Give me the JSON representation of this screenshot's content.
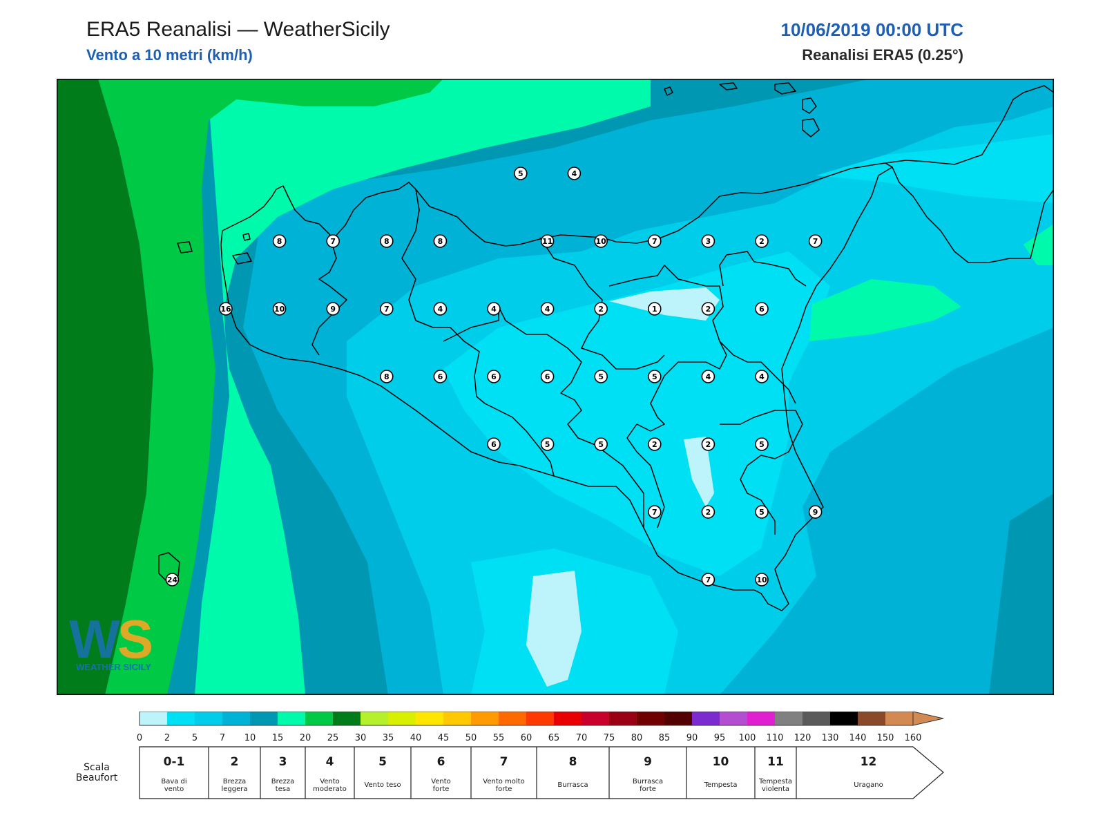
{
  "header": {
    "title": "ERA5 Reanalisi — WeatherSicily",
    "subtitle": "Vento a 10 metri (km/h)",
    "datetime": "10/06/2019 00:00 UTC",
    "source": "Reanalisi ERA5 (0.25°)"
  },
  "colors": {
    "wind_0_2": "#bdf3fb",
    "wind_2_5": "#00e0f5",
    "wind_5_7": "#00cde9",
    "wind_7_10": "#00b3d6",
    "wind_10_15": "#0097b3",
    "wind_15_20": "#00faab",
    "wind_20_25": "#00c946",
    "wind_25_30": "#007d1a",
    "coastline": "#000000",
    "accent": "#1e5fb4"
  },
  "logo": {
    "icon": "weathersicily-logo",
    "text": "WEATHER SICILY"
  },
  "stations": [
    {
      "lat": 38.25,
      "lon": 14.75,
      "value": "5"
    },
    {
      "lat": 38.25,
      "lon": 15.25,
      "value": "4"
    },
    {
      "lat": 38.0,
      "lon": 12.5,
      "value": "8"
    },
    {
      "lat": 38.0,
      "lon": 13.0,
      "value": "7"
    },
    {
      "lat": 38.0,
      "lon": 13.5,
      "value": "8"
    },
    {
      "lat": 38.0,
      "lon": 14.0,
      "value": "8"
    },
    {
      "lat": 38.0,
      "lon": 15.0,
      "value": "11"
    },
    {
      "lat": 38.0,
      "lon": 15.5,
      "value": "10"
    },
    {
      "lat": 38.0,
      "lon": 16.0,
      "value": "7"
    },
    {
      "lat": 38.0,
      "lon": 16.5,
      "value": "3"
    },
    {
      "lat": 38.0,
      "lon": 17.0,
      "value": "2"
    },
    {
      "lat": 38.0,
      "lon": 17.5,
      "value": "7"
    },
    {
      "lat": 37.75,
      "lon": 12.0,
      "value": "16"
    },
    {
      "lat": 37.75,
      "lon": 12.5,
      "value": "10"
    },
    {
      "lat": 37.75,
      "lon": 13.0,
      "value": "9"
    },
    {
      "lat": 37.75,
      "lon": 13.5,
      "value": "7"
    },
    {
      "lat": 37.75,
      "lon": 14.0,
      "value": "4"
    },
    {
      "lat": 37.75,
      "lon": 14.5,
      "value": "4"
    },
    {
      "lat": 37.75,
      "lon": 15.0,
      "value": "4"
    },
    {
      "lat": 37.75,
      "lon": 15.5,
      "value": "2"
    },
    {
      "lat": 37.75,
      "lon": 16.0,
      "value": "1"
    },
    {
      "lat": 37.75,
      "lon": 16.5,
      "value": "2"
    },
    {
      "lat": 37.75,
      "lon": 17.0,
      "value": "6"
    },
    {
      "lat": 37.5,
      "lon": 13.5,
      "value": "8"
    },
    {
      "lat": 37.5,
      "lon": 14.0,
      "value": "6"
    },
    {
      "lat": 37.5,
      "lon": 14.5,
      "value": "6"
    },
    {
      "lat": 37.5,
      "lon": 15.0,
      "value": "6"
    },
    {
      "lat": 37.5,
      "lon": 15.5,
      "value": "5"
    },
    {
      "lat": 37.5,
      "lon": 16.0,
      "value": "5"
    },
    {
      "lat": 37.5,
      "lon": 16.5,
      "value": "4"
    },
    {
      "lat": 37.5,
      "lon": 17.0,
      "value": "4"
    },
    {
      "lat": 37.25,
      "lon": 14.5,
      "value": "6"
    },
    {
      "lat": 37.25,
      "lon": 15.0,
      "value": "5"
    },
    {
      "lat": 37.25,
      "lon": 15.5,
      "value": "5"
    },
    {
      "lat": 37.25,
      "lon": 16.0,
      "value": "2"
    },
    {
      "lat": 37.25,
      "lon": 16.5,
      "value": "2"
    },
    {
      "lat": 37.25,
      "lon": 17.0,
      "value": "5"
    },
    {
      "lat": 37.0,
      "lon": 16.0,
      "value": "7"
    },
    {
      "lat": 37.0,
      "lon": 16.5,
      "value": "2"
    },
    {
      "lat": 37.0,
      "lon": 17.0,
      "value": "5"
    },
    {
      "lat": 37.0,
      "lon": 17.5,
      "value": "9"
    },
    {
      "lat": 36.75,
      "lon": 11.5,
      "value": "24"
    },
    {
      "lat": 36.75,
      "lon": 16.5,
      "value": "7"
    },
    {
      "lat": 36.75,
      "lon": 17.0,
      "value": "10"
    }
  ],
  "colorbar": {
    "ticks": [
      "0",
      "2",
      "5",
      "7",
      "10",
      "15",
      "20",
      "25",
      "30",
      "35",
      "40",
      "45",
      "50",
      "55",
      "60",
      "65",
      "70",
      "75",
      "80",
      "85",
      "90",
      "95",
      "100",
      "110",
      "120",
      "130",
      "140",
      "150",
      "160"
    ],
    "colors": [
      "#bdf3fb",
      "#00e0f5",
      "#00cde9",
      "#00b3d6",
      "#0097b3",
      "#00faab",
      "#00c946",
      "#007d1a",
      "#b4f02b",
      "#d8f000",
      "#ffe600",
      "#ffc800",
      "#ff9a00",
      "#ff6a00",
      "#ff3a00",
      "#e80000",
      "#c8002a",
      "#9a0014",
      "#700000",
      "#520000",
      "#7b2bd0",
      "#b44ed0",
      "#e020d0",
      "#808080",
      "#5a5a5a",
      "#000000",
      "#8a4a2a",
      "#d28a52",
      "#d28a52"
    ]
  },
  "beaufort": {
    "label_line1": "Scala",
    "label_line2": "Beaufort",
    "classes": [
      {
        "num": "0-1",
        "desc": [
          "Bava di",
          "vento"
        ]
      },
      {
        "num": "2",
        "desc": [
          "Brezza",
          "leggera"
        ]
      },
      {
        "num": "3",
        "desc": [
          "Brezza",
          "tesa"
        ]
      },
      {
        "num": "4",
        "desc": [
          "Vento",
          "moderato"
        ]
      },
      {
        "num": "5",
        "desc": [
          "Vento teso"
        ]
      },
      {
        "num": "6",
        "desc": [
          "Vento",
          "forte"
        ]
      },
      {
        "num": "7",
        "desc": [
          "Vento molto",
          "forte"
        ]
      },
      {
        "num": "8",
        "desc": [
          "Burrasca"
        ]
      },
      {
        "num": "9",
        "desc": [
          "Burrasca",
          "forte"
        ]
      },
      {
        "num": "10",
        "desc": [
          "Tempesta"
        ]
      },
      {
        "num": "11",
        "desc": [
          "Tempesta",
          "violenta"
        ]
      },
      {
        "num": "12",
        "desc": [
          "Uragano"
        ]
      }
    ]
  }
}
